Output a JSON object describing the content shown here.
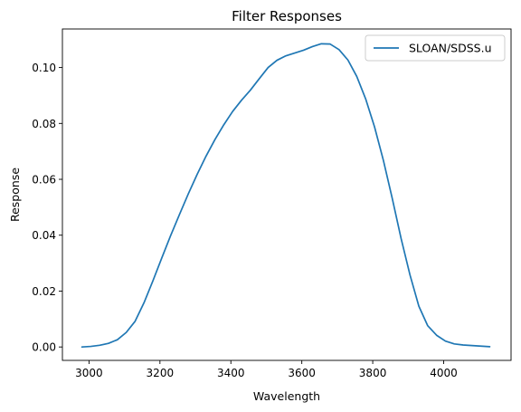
{
  "chart_data": {
    "type": "line",
    "title": "Filter Responses",
    "xlabel": "Wavelength",
    "ylabel": "Response",
    "xlim": [
      2925,
      4190
    ],
    "ylim": [
      -0.0048,
      0.1138
    ],
    "xticks": [
      3000,
      3200,
      3400,
      3600,
      3800,
      4000
    ],
    "xtick_labels": [
      "3000",
      "3200",
      "3400",
      "3600",
      "3800",
      "4000"
    ],
    "yticks": [
      0.0,
      0.02,
      0.04,
      0.06,
      0.08,
      0.1
    ],
    "ytick_labels": [
      "0.00",
      "0.02",
      "0.04",
      "0.06",
      "0.08",
      "0.10"
    ],
    "grid": false,
    "legend_position": "top-right",
    "series": [
      {
        "name": "SLOAN/SDSS.u",
        "color": "#1f77b4",
        "x": [
          2980,
          3005,
          3030,
          3055,
          3080,
          3105,
          3130,
          3155,
          3180,
          3205,
          3230,
          3255,
          3280,
          3305,
          3330,
          3355,
          3380,
          3405,
          3430,
          3455,
          3480,
          3505,
          3530,
          3555,
          3580,
          3605,
          3630,
          3655,
          3680,
          3705,
          3730,
          3755,
          3780,
          3805,
          3830,
          3855,
          3880,
          3905,
          3930,
          3955,
          3980,
          4005,
          4030,
          4055,
          4080,
          4105,
          4130
        ],
        "y": [
          0.0,
          0.0002,
          0.0006,
          0.0013,
          0.0026,
          0.0052,
          0.0092,
          0.0158,
          0.0236,
          0.0318,
          0.0398,
          0.0474,
          0.0548,
          0.0618,
          0.0683,
          0.0742,
          0.0795,
          0.0843,
          0.0883,
          0.0919,
          0.096,
          0.1,
          0.1026,
          0.1042,
          0.1052,
          0.1062,
          0.1075,
          0.1085,
          0.1084,
          0.1064,
          0.1027,
          0.0968,
          0.0888,
          0.0788,
          0.0668,
          0.0532,
          0.0388,
          0.0258,
          0.0146,
          0.0076,
          0.0042,
          0.0021,
          0.0011,
          0.0007,
          0.0005,
          0.0003,
          0.0001
        ]
      }
    ]
  }
}
